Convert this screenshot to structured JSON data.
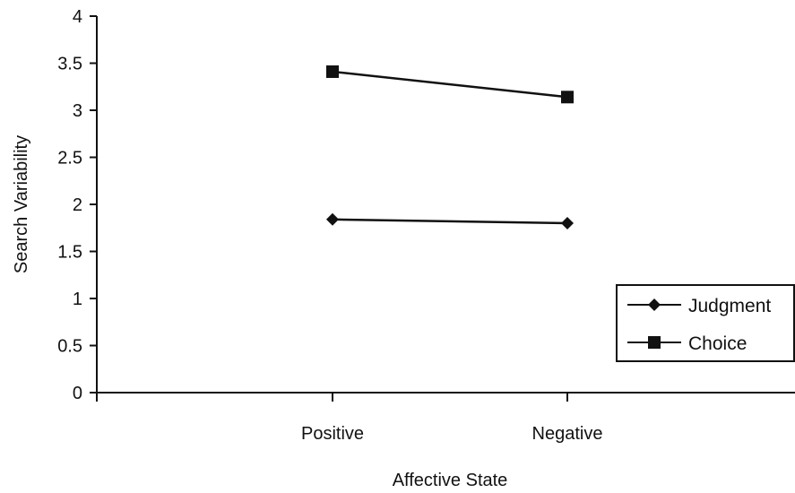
{
  "chart_data": {
    "type": "line",
    "categories": [
      "Positive",
      "Negative"
    ],
    "series": [
      {
        "name": "Judgment",
        "values": [
          1.84,
          1.8
        ],
        "marker": "diamond"
      },
      {
        "name": "Choice",
        "values": [
          3.41,
          3.14
        ],
        "marker": "square"
      }
    ],
    "xlabel": "Affective State",
    "ylabel": "Search Variability",
    "ylim": [
      0,
      4
    ],
    "yticks": [
      "0",
      "0.5",
      "1",
      "1.5",
      "2",
      "2.5",
      "3",
      "3.5",
      "4"
    ],
    "grid": false,
    "legend_position": "right",
    "colors": {
      "line": "#111111",
      "marker": "#111111"
    }
  }
}
